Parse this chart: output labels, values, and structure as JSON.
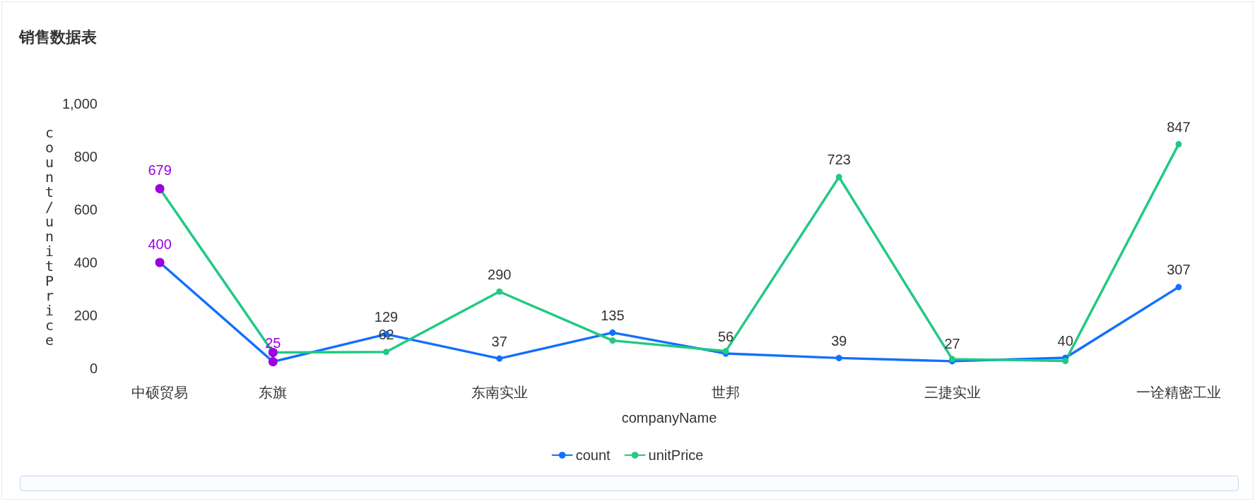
{
  "chart_data": {
    "type": "line",
    "title": "销售数据表",
    "xlabel": "companyName",
    "ylabel": "count/unitPrice",
    "categories": [
      "中硕贸易",
      "东旗",
      null,
      "东南实业",
      null,
      "世邦",
      null,
      "三捷实业",
      null,
      "一诠精密工业"
    ],
    "series": [
      {
        "name": "count",
        "color": "#1170ff",
        "colors": [
          "#9b00e0",
          "#9b00e0",
          "#1170ff",
          "#1170ff",
          "#1170ff",
          "#1170ff",
          "#1170ff",
          "#1170ff",
          "#1170ff",
          "#1170ff"
        ],
        "values": [
          400,
          25,
          129,
          37,
          135,
          56,
          39,
          27,
          40,
          307
        ],
        "value_labels": [
          "400",
          "25",
          "129",
          "37",
          "135",
          "56",
          "39",
          "27",
          "40",
          "307"
        ]
      },
      {
        "name": "unitPrice",
        "color": "#22c983",
        "colors": [
          "#9b00e0",
          "#9b00e0",
          "#22c983",
          "#22c983",
          "#22c983",
          "#22c983",
          "#22c983",
          "#22c983",
          "#22c983",
          "#22c983"
        ],
        "values": [
          679,
          60,
          62,
          290,
          105,
          65,
          723,
          35,
          28,
          847
        ],
        "value_labels": [
          "679",
          null,
          "62",
          "290",
          null,
          null,
          "723",
          null,
          null,
          "847"
        ]
      }
    ],
    "ylim": [
      0,
      1000
    ],
    "yticks": [
      0,
      200,
      400,
      600,
      800,
      {
        "value": 1000,
        "label": "1,000"
      }
    ],
    "grid": false,
    "legend": "bottom",
    "marker": "circle",
    "line_style": "solid"
  }
}
